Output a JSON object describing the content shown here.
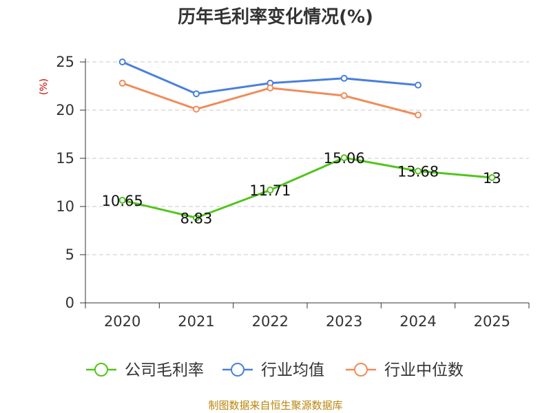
{
  "chart_data": {
    "type": "line",
    "title": "历年毛利率变化情况(%)",
    "ylabel": "(%)",
    "xlabel": "",
    "categories": [
      "2020",
      "2021",
      "2022",
      "2023",
      "2024",
      "2025"
    ],
    "ylim": [
      0,
      25
    ],
    "yticks": [
      0,
      5,
      10,
      15,
      20,
      25
    ],
    "grid": true,
    "legend_position": "bottom",
    "series": [
      {
        "name": "公司毛利率",
        "color": "#52c41a",
        "values": [
          10.65,
          8.83,
          11.71,
          15.06,
          13.68,
          13
        ],
        "labels": [
          "10.65",
          "8.83",
          "11.71",
          "15.06",
          "13.68",
          "13"
        ]
      },
      {
        "name": "行业均值",
        "color": "#4a7fdc",
        "values": [
          25.0,
          21.7,
          22.8,
          23.3,
          22.6,
          null
        ]
      },
      {
        "name": "行业中位数",
        "color": "#f08c5a",
        "values": [
          22.8,
          20.1,
          22.3,
          21.5,
          19.5,
          null
        ]
      }
    ]
  },
  "source": "制图数据来自恒生聚源数据库"
}
